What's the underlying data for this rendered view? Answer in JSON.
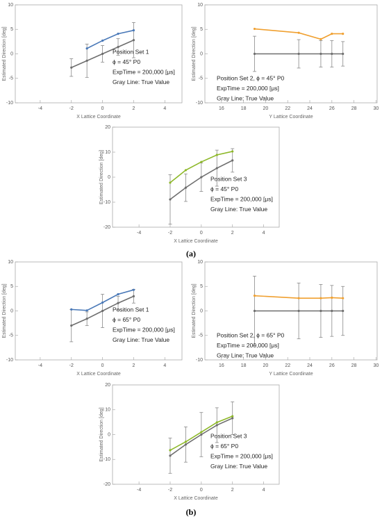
{
  "panel_labels": [
    "(a)",
    "(b)"
  ],
  "chart_data": [
    {
      "type": "line",
      "x_label": "X Lattice Coordinate",
      "y_label": "Estimated Direction [deg]",
      "annotations": [
        "Position Set 1",
        "ϕ = 45°  P0",
        "ExpTime = 200,000 [μs]",
        "Gray Line: True Value"
      ],
      "xlim": [
        -5.6,
        5.1
      ],
      "xticks": [
        -4,
        -2,
        0,
        2,
        4
      ],
      "ylim": [
        -10,
        10
      ],
      "yticks": [
        -10,
        -5,
        0,
        5,
        10
      ],
      "series": [
        {
          "color": "#4a79b8",
          "x": [
            -1,
            0,
            1,
            2
          ],
          "values": [
            1.1,
            2.7,
            4.1,
            4.8
          ]
        },
        {
          "color": "#6e6e6e",
          "x": [
            -2,
            -1,
            0,
            1,
            2
          ],
          "values": [
            -2.8,
            -1.4,
            0,
            1.4,
            2.8
          ],
          "errors": [
            1.8,
            3.4,
            1.7,
            1.7,
            3.6
          ]
        }
      ]
    },
    {
      "type": "line",
      "x_label": "Y Lattice Coordinate",
      "y_label": "Estimated Direction [deg]",
      "annotations": [
        "Position Set 2, ϕ = 45°  P0",
        "ExpTime = 200,000 [μs]",
        "Gray Line: True Value"
      ],
      "xlim": [
        14.5,
        30.1
      ],
      "xticks": [
        16,
        18,
        20,
        22,
        24,
        26,
        28,
        30
      ],
      "ylim": [
        -10,
        10
      ],
      "yticks": [
        -10,
        -5,
        0,
        5,
        10
      ],
      "series": [
        {
          "color": "#f0a030",
          "x": [
            19,
            23,
            25,
            26,
            27
          ],
          "values": [
            5.1,
            4.3,
            3.0,
            4.1,
            4.1
          ]
        },
        {
          "color": "#6e6e6e",
          "x": [
            19,
            23,
            25,
            26,
            27
          ],
          "values": [
            0,
            0,
            0,
            0,
            0
          ],
          "errors": [
            3.6,
            2.9,
            2.7,
            2.7,
            2.5
          ]
        }
      ]
    },
    {
      "type": "line",
      "x_label": "X Lattice Coordinate",
      "y_label": "Estimated Direction [deg]",
      "annotations": [
        "Position Set 3",
        "ϕ = 45°  P0",
        "ExpTime = 200,000 [μs]",
        "Gray Line: True Value"
      ],
      "xlim": [
        -5.7,
        5.0
      ],
      "xticks": [
        -4,
        -2,
        0,
        2,
        4
      ],
      "ylim": [
        -20,
        20
      ],
      "yticks": [
        -20,
        -10,
        0,
        10,
        20
      ],
      "series": [
        {
          "color": "#8db828",
          "x": [
            -2,
            -1,
            0,
            1,
            2
          ],
          "values": [
            -2.2,
            2.8,
            6.1,
            8.9,
            10.3
          ]
        },
        {
          "color": "#6e6e6e",
          "x": [
            -2,
            -1,
            0,
            1,
            2
          ],
          "values": [
            -8.9,
            -4.2,
            0,
            3.6,
            6.7
          ],
          "errors": [
            9.9,
            5.5,
            5.7,
            7.2,
            4.7
          ]
        }
      ]
    },
    {
      "type": "line",
      "x_label": "X Lattice Coordinate",
      "y_label": "Estimated Direction [deg]",
      "annotations": [
        "Position Set 1",
        "ϕ = 65° P0",
        "ExpTime = 200,000 [μs]",
        "Gray Line: True Value"
      ],
      "xlim": [
        -5.6,
        5.1
      ],
      "xticks": [
        -4,
        -2,
        0,
        2,
        4
      ],
      "ylim": [
        -10,
        10
      ],
      "yticks": [
        -10,
        -5,
        0,
        5,
        10
      ],
      "series": [
        {
          "color": "#4a79b8",
          "x": [
            -2,
            -1,
            0,
            1,
            2
          ],
          "values": [
            0.3,
            0.1,
            1.7,
            3.4,
            4.3
          ]
        },
        {
          "color": "#6e6e6e",
          "x": [
            -2,
            -1,
            0,
            1,
            2
          ],
          "values": [
            -3.0,
            -1.6,
            0,
            1.6,
            3.0
          ],
          "errors": [
            3.3,
            1.4,
            3.4,
            1.4,
            1.4
          ]
        }
      ]
    },
    {
      "type": "line",
      "x_label": "Y Lattice Coordinate",
      "y_label": "Estimated Direction [deg]",
      "annotations": [
        "Position Set 2, ϕ = 65° P0",
        "ExpTime = 200,000 [μs]",
        "Gray Line: True Value"
      ],
      "xlim": [
        14.5,
        30.1
      ],
      "xticks": [
        16,
        18,
        20,
        22,
        24,
        26,
        28,
        30
      ],
      "ylim": [
        -10,
        10
      ],
      "yticks": [
        -10,
        -5,
        0,
        5,
        10
      ],
      "series": [
        {
          "color": "#f0a030",
          "x": [
            19,
            23,
            25,
            26,
            27
          ],
          "values": [
            3.1,
            2.6,
            2.6,
            2.7,
            2.6
          ]
        },
        {
          "color": "#6e6e6e",
          "x": [
            19,
            23,
            25,
            26,
            27
          ],
          "values": [
            0,
            0,
            0,
            0,
            0
          ],
          "errors": [
            7.1,
            5.7,
            5.4,
            5.2,
            5.0
          ]
        }
      ]
    },
    {
      "type": "line",
      "x_label": "X Lattice Coordinate",
      "y_label": "Estimated Direction [deg]",
      "annotations": [
        "Position Set 3",
        "ϕ = 65° P0",
        "ExpTime = 200,000 [μs]",
        "Gray Line: True Value"
      ],
      "xlim": [
        -5.7,
        5.0
      ],
      "xticks": [
        -4,
        -2,
        0,
        2,
        4
      ],
      "ylim": [
        -20,
        20
      ],
      "yticks": [
        -20,
        -10,
        0,
        10,
        20
      ],
      "series": [
        {
          "color": "#8db828",
          "x": [
            -2,
            -1,
            0,
            1,
            2
          ],
          "values": [
            -6.3,
            -2.9,
            1.0,
            4.9,
            7.4
          ]
        },
        {
          "color": "#6e6e6e",
          "x": [
            -2,
            -1,
            0,
            1,
            2
          ],
          "values": [
            -8.5,
            -4.0,
            0,
            3.8,
            6.6
          ],
          "errors": [
            7.1,
            7.1,
            8.9,
            7.0,
            6.6
          ]
        }
      ]
    }
  ]
}
